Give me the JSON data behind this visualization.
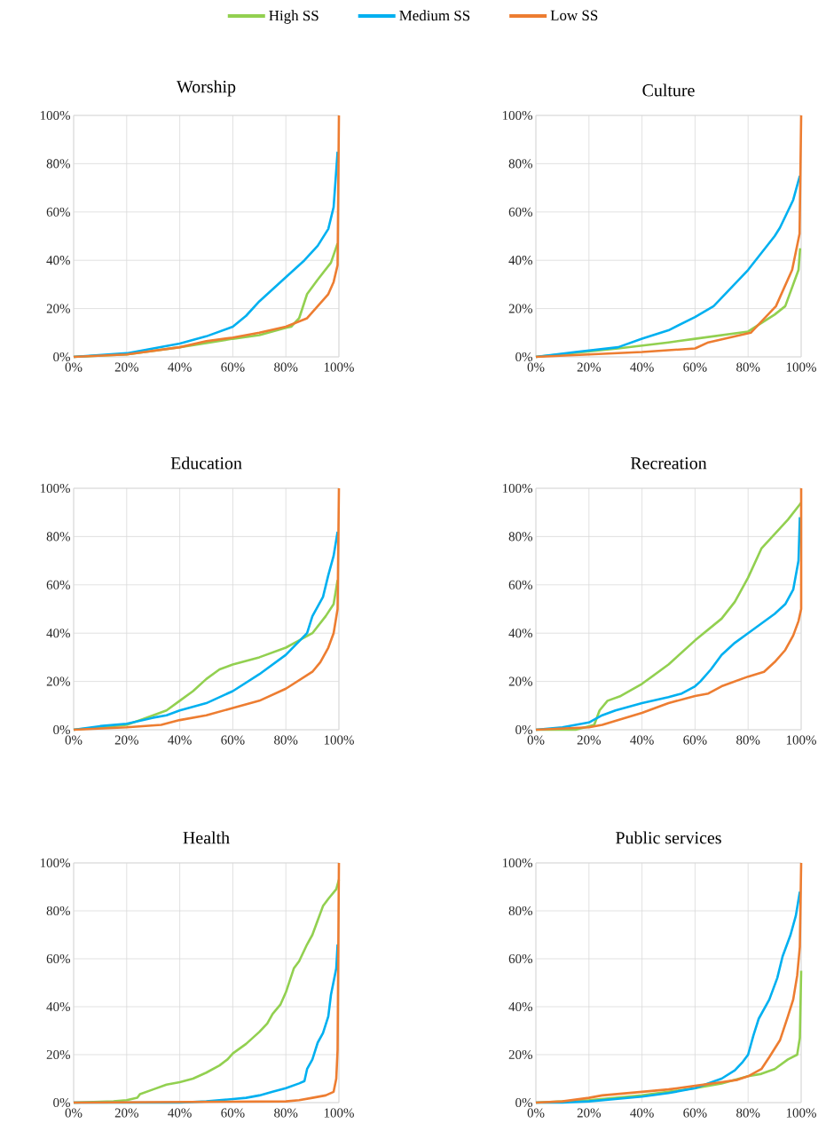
{
  "chart_data": [
    {
      "type": "line",
      "title": "Worship",
      "xlim": [
        0,
        100
      ],
      "ylim": [
        0,
        100
      ],
      "grid": true,
      "legend": "top",
      "xticks": [
        {
          "value": 0,
          "label": "0%"
        },
        {
          "value": 20,
          "label": "20%"
        },
        {
          "value": 40,
          "label": "40%"
        },
        {
          "value": 60,
          "label": "60%"
        },
        {
          "value": 80,
          "label": "80%"
        },
        {
          "value": 100,
          "label": "100%"
        }
      ],
      "yticks": [
        {
          "value": 0,
          "label": "0%"
        },
        {
          "value": 20,
          "label": "20%"
        },
        {
          "value": 40,
          "label": "40%"
        },
        {
          "value": 60,
          "label": "60%"
        },
        {
          "value": 80,
          "label": "80%"
        },
        {
          "value": 100,
          "label": "100%"
        }
      ],
      "series": [
        {
          "name": "High SS",
          "color": "#92d050",
          "x": [
            0,
            20,
            40,
            60,
            70,
            80,
            82,
            85,
            88,
            92,
            97,
            99.5
          ],
          "values": [
            0,
            1,
            4,
            7.5,
            9,
            12,
            12.5,
            16,
            26,
            32,
            39,
            47
          ]
        },
        {
          "name": "Medium SS",
          "color": "#00b0f0",
          "x": [
            0,
            20,
            40,
            50,
            60,
            65,
            70,
            80,
            87,
            92,
            96,
            98,
            99.5
          ],
          "values": [
            0,
            1.5,
            5.5,
            8.5,
            12.5,
            17,
            23,
            33,
            40,
            46,
            53,
            62,
            85
          ]
        },
        {
          "name": "Low SS",
          "color": "#ed7d31",
          "x": [
            0,
            20,
            40,
            50,
            60,
            70,
            80,
            88,
            92,
            96,
            98,
            99.5,
            100
          ],
          "values": [
            0,
            1,
            4,
            6.5,
            8,
            10,
            12.5,
            16,
            21,
            26,
            31,
            38,
            100
          ]
        }
      ]
    },
    {
      "type": "line",
      "title": "Culture",
      "xlim": [
        0,
        100
      ],
      "ylim": [
        0,
        100
      ],
      "grid": true,
      "xticks": [
        {
          "value": 0,
          "label": "0%"
        },
        {
          "value": 20,
          "label": "20%"
        },
        {
          "value": 40,
          "label": "40%"
        },
        {
          "value": 60,
          "label": "60%"
        },
        {
          "value": 80,
          "label": "80%"
        },
        {
          "value": 100,
          "label": "100%"
        }
      ],
      "yticks": [
        {
          "value": 0,
          "label": "0%"
        },
        {
          "value": 20,
          "label": "20%"
        },
        {
          "value": 40,
          "label": "40%"
        },
        {
          "value": 60,
          "label": "60%"
        },
        {
          "value": 80,
          "label": "80%"
        },
        {
          "value": 100,
          "label": "100%"
        }
      ],
      "series": [
        {
          "color": "#92d050",
          "x": [
            0,
            31,
            50,
            60,
            80,
            90,
            94,
            99,
            99.6
          ],
          "values": [
            0,
            3.5,
            6,
            7.5,
            10.5,
            17.5,
            21,
            36,
            45
          ]
        },
        {
          "color": "#00b0f0",
          "x": [
            0,
            15,
            31,
            40,
            50,
            60,
            67,
            80,
            90,
            92,
            97,
            99.5
          ],
          "values": [
            0,
            2,
            4,
            7.5,
            11,
            16.5,
            21,
            36,
            50,
            53.5,
            65,
            75
          ]
        },
        {
          "color": "#ed7d31",
          "x": [
            0,
            20,
            40,
            60,
            65,
            81,
            90.5,
            96.6,
            99.4,
            100
          ],
          "values": [
            0,
            1,
            2,
            3.5,
            6,
            10,
            21,
            36,
            51,
            100
          ]
        }
      ]
    },
    {
      "type": "line",
      "title": "Education",
      "xlim": [
        0,
        100
      ],
      "ylim": [
        0,
        100
      ],
      "grid": true,
      "xticks": [
        {
          "value": 0,
          "label": "0%"
        },
        {
          "value": 20,
          "label": "20%"
        },
        {
          "value": 40,
          "label": "40%"
        },
        {
          "value": 60,
          "label": "60%"
        },
        {
          "value": 80,
          "label": "80%"
        },
        {
          "value": 100,
          "label": "100%"
        }
      ],
      "yticks": [
        {
          "value": 0,
          "label": "0%"
        },
        {
          "value": 20,
          "label": "20%"
        },
        {
          "value": 40,
          "label": "40%"
        },
        {
          "value": 60,
          "label": "60%"
        },
        {
          "value": 80,
          "label": "80%"
        },
        {
          "value": 100,
          "label": "100%"
        }
      ],
      "series": [
        {
          "color": "#92d050",
          "x": [
            0,
            20,
            25,
            30,
            35,
            40,
            45,
            50,
            55,
            60,
            70,
            80,
            85,
            90,
            95,
            98,
            99.5
          ],
          "values": [
            0,
            2,
            4,
            6,
            8,
            12,
            16,
            21,
            25,
            27,
            30,
            34,
            37,
            40,
            47,
            52,
            62
          ]
        },
        {
          "color": "#00b0f0",
          "x": [
            0,
            10,
            20,
            30,
            35,
            40,
            50,
            60,
            70,
            80,
            88,
            90,
            94,
            96,
            98,
            99.5
          ],
          "values": [
            0,
            1.5,
            2.5,
            5,
            6,
            8,
            11,
            16,
            23,
            31,
            40,
            47,
            55,
            64,
            72,
            82
          ]
        },
        {
          "color": "#ed7d31",
          "x": [
            0,
            20,
            33,
            40,
            50,
            60,
            70,
            80,
            90,
            93,
            96,
            98,
            99.5,
            100
          ],
          "values": [
            0,
            1,
            2,
            4,
            6,
            9,
            12,
            17,
            24,
            28,
            34,
            40,
            50,
            100
          ]
        }
      ]
    },
    {
      "type": "line",
      "title": "Recreation",
      "xlim": [
        0,
        100
      ],
      "ylim": [
        0,
        100
      ],
      "grid": true,
      "xticks": [
        {
          "value": 0,
          "label": "0%"
        },
        {
          "value": 20,
          "label": "20%"
        },
        {
          "value": 40,
          "label": "40%"
        },
        {
          "value": 60,
          "label": "60%"
        },
        {
          "value": 80,
          "label": "80%"
        },
        {
          "value": 100,
          "label": "100%"
        }
      ],
      "yticks": [
        {
          "value": 0,
          "label": "0%"
        },
        {
          "value": 20,
          "label": "20%"
        },
        {
          "value": 40,
          "label": "40%"
        },
        {
          "value": 60,
          "label": "60%"
        },
        {
          "value": 80,
          "label": "80%"
        },
        {
          "value": 100,
          "label": "100%"
        }
      ],
      "series": [
        {
          "color": "#92d050",
          "x": [
            0,
            15,
            22,
            24,
            27,
            32,
            40,
            50,
            60,
            70,
            75,
            80,
            85,
            90,
            95,
            100
          ],
          "values": [
            0,
            0,
            2,
            8,
            12,
            14,
            19,
            27,
            37,
            46,
            53,
            63,
            75,
            81,
            87,
            94
          ]
        },
        {
          "color": "#00b0f0",
          "x": [
            0,
            10,
            20,
            25,
            30,
            40,
            50,
            55,
            60,
            62,
            66,
            70,
            75,
            80,
            85,
            90,
            94,
            97,
            99,
            99.5
          ],
          "values": [
            0,
            1,
            3,
            6,
            8,
            11,
            13.5,
            15,
            18,
            20,
            25,
            31,
            36,
            40,
            44,
            48,
            52,
            58,
            70,
            88
          ]
        },
        {
          "color": "#ed7d31",
          "x": [
            0,
            20,
            25,
            40,
            50,
            60,
            65,
            70,
            80,
            86,
            90,
            94,
            97,
            99,
            100,
            100
          ],
          "values": [
            0,
            1,
            2,
            7,
            11,
            14,
            15,
            18,
            22,
            24,
            28,
            33,
            39,
            45,
            50,
            100
          ]
        }
      ]
    },
    {
      "type": "line",
      "title": "Health",
      "xlim": [
        0,
        100
      ],
      "ylim": [
        0,
        100
      ],
      "grid": true,
      "xticks": [
        {
          "value": 0,
          "label": "0%"
        },
        {
          "value": 20,
          "label": "20%"
        },
        {
          "value": 40,
          "label": "40%"
        },
        {
          "value": 60,
          "label": "60%"
        },
        {
          "value": 80,
          "label": "80%"
        },
        {
          "value": 100,
          "label": "100%"
        }
      ],
      "yticks": [
        {
          "value": 0,
          "label": "0%"
        },
        {
          "value": 20,
          "label": "20%"
        },
        {
          "value": 40,
          "label": "40%"
        },
        {
          "value": 60,
          "label": "60%"
        },
        {
          "value": 80,
          "label": "80%"
        },
        {
          "value": 100,
          "label": "100%"
        }
      ],
      "series": [
        {
          "color": "#92d050",
          "x": [
            0,
            15,
            20,
            24,
            25,
            30,
            35,
            40,
            45,
            50,
            55,
            58,
            60,
            65,
            70,
            73,
            75,
            78,
            80,
            83,
            85,
            88,
            90,
            92,
            94,
            96,
            99,
            100
          ],
          "values": [
            0,
            0.5,
            1,
            2,
            3.5,
            5.5,
            7.5,
            8.5,
            10,
            12.5,
            15.5,
            18,
            20.5,
            24.5,
            29.5,
            33,
            37,
            41,
            46,
            56,
            59,
            66,
            70,
            76,
            82,
            85,
            89,
            93
          ]
        },
        {
          "color": "#00b0f0",
          "x": [
            0,
            40,
            50,
            60,
            65,
            70,
            75,
            80,
            85,
            87,
            88,
            90,
            92,
            94,
            96,
            97,
            99,
            99.5
          ],
          "values": [
            0,
            0,
            0.5,
            1.5,
            2,
            3,
            4.5,
            6,
            8,
            9,
            14,
            18,
            25,
            29,
            36,
            45,
            56,
            66
          ]
        },
        {
          "color": "#ed7d31",
          "x": [
            0,
            80,
            85,
            90,
            95,
            98,
            99,
            99.5,
            100
          ],
          "values": [
            0,
            0.5,
            1,
            2,
            3,
            4.5,
            10,
            22,
            100
          ]
        }
      ]
    },
    {
      "type": "line",
      "title": "Public services",
      "xlim": [
        0,
        100
      ],
      "ylim": [
        0,
        100
      ],
      "grid": true,
      "xticks": [
        {
          "value": 0,
          "label": "0%"
        },
        {
          "value": 20,
          "label": "20%"
        },
        {
          "value": 40,
          "label": "40%"
        },
        {
          "value": 60,
          "label": "60%"
        },
        {
          "value": 80,
          "label": "80%"
        },
        {
          "value": 100,
          "label": "100%"
        }
      ],
      "yticks": [
        {
          "value": 0,
          "label": "0%"
        },
        {
          "value": 20,
          "label": "20%"
        },
        {
          "value": 40,
          "label": "40%"
        },
        {
          "value": 60,
          "label": "60%"
        },
        {
          "value": 80,
          "label": "80%"
        },
        {
          "value": 100,
          "label": "100%"
        }
      ],
      "series": [
        {
          "color": "#92d050",
          "x": [
            0,
            20,
            40,
            60,
            70,
            80,
            85,
            90,
            95,
            98.5,
            99.5,
            100
          ],
          "values": [
            0,
            1,
            3,
            6,
            8,
            11,
            12,
            14,
            18,
            20,
            27,
            55
          ]
        },
        {
          "color": "#00b0f0",
          "x": [
            0,
            10,
            20,
            40,
            50,
            60,
            70,
            75,
            78,
            80,
            82,
            84,
            88,
            91,
            93,
            96,
            98,
            99.5
          ],
          "values": [
            0,
            0,
            0.5,
            2.5,
            4,
            6,
            10,
            13.5,
            17,
            20,
            28,
            35,
            43,
            52,
            61,
            70,
            78,
            88
          ]
        },
        {
          "color": "#ed7d31",
          "x": [
            0,
            10,
            20,
            25,
            40,
            50,
            60,
            70,
            76,
            80,
            85,
            88,
            92,
            95,
            97,
            98.5,
            99.5,
            100
          ],
          "values": [
            0,
            0.5,
            2,
            3,
            4.5,
            5.5,
            7,
            8.5,
            9.5,
            11,
            14,
            19,
            26,
            36,
            43,
            53,
            65,
            100
          ]
        }
      ]
    }
  ]
}
